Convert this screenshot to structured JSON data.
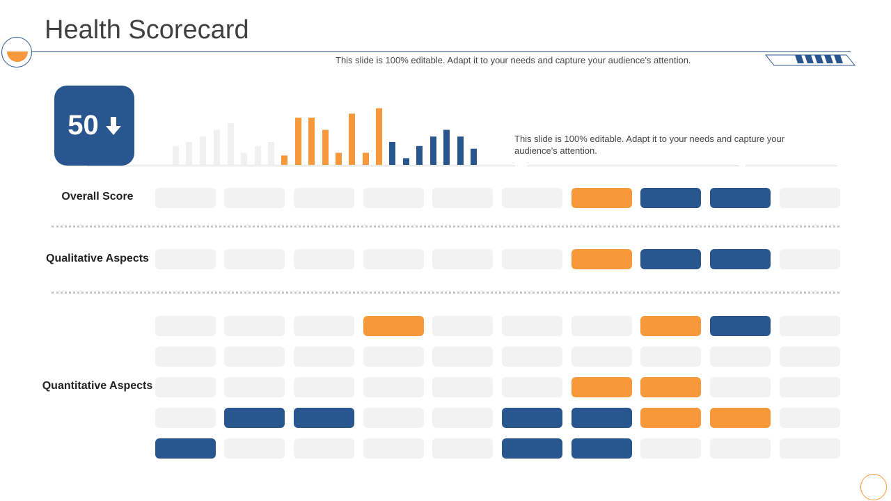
{
  "header": {
    "title": "Health Scorecard",
    "subtitle": "This slide is 100% editable. Adapt it to your needs and capture your audience's attention."
  },
  "score": {
    "value": "50",
    "trend_icon": "arrow-down-icon"
  },
  "note": "This slide is 100% editable. Adapt it to your needs and capture your audience's attention.",
  "colors": {
    "blue": "#2a568f",
    "orange": "#f7993a",
    "light": "#f2f2f2"
  },
  "chart_data": {
    "type": "bar",
    "title": "",
    "values": [
      28,
      34,
      42,
      52,
      62,
      18,
      28,
      34,
      14,
      70,
      70,
      52,
      18,
      76,
      18,
      84,
      34,
      10,
      28,
      42,
      52,
      42,
      24
    ],
    "colors": [
      "light",
      "light",
      "light",
      "light",
      "light",
      "light",
      "light",
      "light",
      "orange",
      "orange",
      "orange",
      "orange",
      "orange",
      "orange",
      "orange",
      "orange",
      "blue",
      "blue",
      "blue",
      "blue",
      "blue",
      "blue",
      "blue"
    ],
    "ylim": [
      0,
      100
    ]
  },
  "sections": {
    "overall": {
      "label": "Overall Score",
      "rows": [
        [
          "light",
          "light",
          "light",
          "light",
          "light",
          "light",
          "orange",
          "blue",
          "blue",
          "light"
        ]
      ]
    },
    "qualitative": {
      "label": "Qualitative Aspects",
      "rows": [
        [
          "light",
          "light",
          "light",
          "light",
          "light",
          "light",
          "orange",
          "blue",
          "blue",
          "light"
        ]
      ]
    },
    "quantitative": {
      "label": "Quantitative Aspects",
      "rows": [
        [
          "light",
          "light",
          "light",
          "orange",
          "light",
          "light",
          "light",
          "orange",
          "blue",
          "light"
        ],
        [
          "light",
          "light",
          "light",
          "light",
          "light",
          "light",
          "light",
          "light",
          "light",
          "light"
        ],
        [
          "light",
          "light",
          "light",
          "light",
          "light",
          "light",
          "orange",
          "orange",
          "light",
          "light"
        ],
        [
          "light",
          "blue",
          "blue",
          "light",
          "light",
          "blue",
          "blue",
          "orange",
          "orange",
          "light"
        ],
        [
          "blue",
          "light",
          "light",
          "light",
          "light",
          "blue",
          "blue",
          "light",
          "light",
          "light"
        ]
      ]
    }
  }
}
